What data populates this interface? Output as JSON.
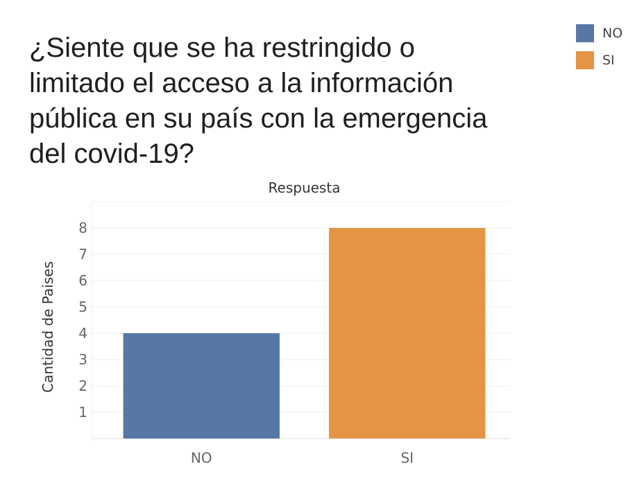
{
  "chart_data": {
    "type": "bar",
    "title": "¿Siente que se ha restringido o limitado el acceso a la información pública en su país con la emergencia del covid-19?",
    "xlabel": "Respuesta",
    "ylabel": "Cantidad de Paises",
    "categories": [
      "NO",
      "SI"
    ],
    "values": [
      4,
      8
    ],
    "colors": [
      "#5778a4",
      "#e49444"
    ],
    "ylim": [
      0,
      9
    ],
    "yticks": [
      1,
      2,
      3,
      4,
      5,
      6,
      7,
      8
    ],
    "grid": true,
    "legend": {
      "position": "top-right",
      "entries": [
        {
          "label": "NO",
          "color": "#5778a4"
        },
        {
          "label": "SI",
          "color": "#e49444"
        }
      ]
    }
  }
}
